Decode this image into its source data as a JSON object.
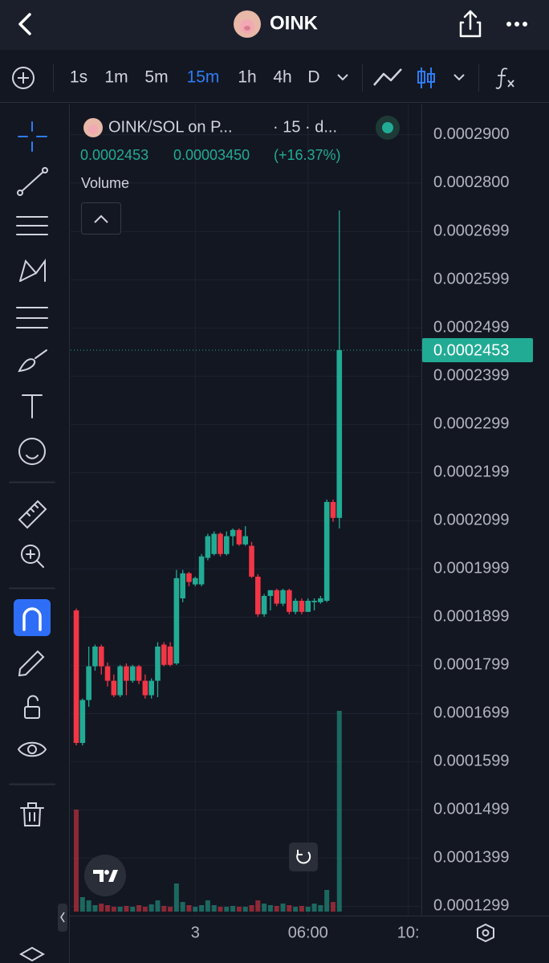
{
  "header": {
    "title": "OINK"
  },
  "toolbar": {
    "intervals": [
      "1s",
      "1m",
      "5m",
      "15m",
      "1h",
      "4h",
      "D"
    ],
    "active": 3
  },
  "chart_data": {
    "type": "candlestick",
    "title": "OINK/SOL on P...",
    "subtitle": "· 15 · d...",
    "last_price": 0.0002453,
    "change": {
      "value": 3.45e-05,
      "label": "0.00003450"
    },
    "change_percent": "(+16.37%)",
    "volume_label": "Volume",
    "up_color": "#22ab94",
    "down_color": "#f23645",
    "grid": true,
    "xlim": [
      -0.9,
      55.1
    ],
    "xticks": [
      {
        "value": 19,
        "label": "3"
      },
      {
        "value": 37,
        "label": "06:00"
      },
      {
        "value": 53,
        "label": "10:"
      }
    ],
    "ylim": [
      0.0001288,
      0.0002963
    ],
    "yticks": [
      {
        "value": 0.00029,
        "label": "0.0002900"
      },
      {
        "value": 0.00028,
        "label": "0.0002800"
      },
      0.0002699,
      0.0002599,
      0.0002499,
      0.0002399,
      0.0002299,
      0.0002199,
      0.0002099,
      0.0001999,
      0.0001899,
      0.0001799,
      0.0001699,
      0.0001599,
      0.0001499,
      0.0001399,
      0.0001299
    ],
    "open": [
      0.0001913,
      0.0001638,
      0.0001727,
      0.0001797,
      0.0001838,
      0.0001797,
      0.0001767,
      0.0001737,
      0.0001797,
      0.0001767,
      0.0001797,
      0.0001767,
      0.0001737,
      0.0001767,
      0.0001842,
      0.0001838,
      0.0001803,
      0.0001938,
      0.000199,
      0.0001967,
      0.0001967,
      0.0002022,
      0.000203,
      0.0002072,
      0.000203,
      0.0002067,
      0.000208,
      0.000205,
      0.0002047,
      0.0001983,
      0.0001905,
      0.0001943,
      0.0001955,
      0.0001927,
      0.0001955,
      0.000191,
      0.0001933,
      0.000191,
      0.000193,
      0.000193,
      0.0001933,
      0.0002138,
      0.0002105
    ],
    "high": [
      0.0001917,
      0.000173,
      0.0001838,
      0.0001842,
      0.0001842,
      0.0001805,
      0.000178,
      0.00018,
      0.0001803,
      0.00018,
      0.00018,
      0.000178,
      0.0001772,
      0.0001847,
      0.0001847,
      0.0001847,
      0.0001997,
      0.0001997,
      0.0001993,
      0.0001983,
      0.000203,
      0.0002072,
      0.0002077,
      0.0002075,
      0.0002077,
      0.0002083,
      0.0002083,
      0.0002088,
      0.0002055,
      0.0001988,
      0.0001947,
      0.0001947,
      0.0001958,
      0.0001958,
      0.0001958,
      0.0001938,
      0.0001938,
      0.0001938,
      0.0001938,
      0.0001943,
      0.0002143,
      0.0002143,
      0.0002743
    ],
    "low": [
      0.0001633,
      0.0001633,
      0.0001713,
      0.0001788,
      0.000178,
      0.0001755,
      0.0001733,
      0.0001733,
      0.0001737,
      0.0001763,
      0.000176,
      0.000173,
      0.000173,
      0.0001733,
      0.0001797,
      0.0001797,
      0.00018,
      0.000193,
      0.0001963,
      0.0001963,
      0.0001963,
      0.0002017,
      0.0002027,
      0.0002025,
      0.0002027,
      0.0002047,
      0.0002047,
      0.0002047,
      0.000198,
      0.00019,
      0.00019,
      0.0001913,
      0.0001922,
      0.0001922,
      0.0001905,
      0.0001905,
      0.0001905,
      0.000191,
      0.0001913,
      0.0001927,
      0.000193,
      0.0002097,
      0.0002083
    ],
    "close": [
      0.0001638,
      0.0001727,
      0.0001797,
      0.0001838,
      0.0001797,
      0.0001767,
      0.0001737,
      0.0001797,
      0.0001767,
      0.0001797,
      0.0001767,
      0.0001737,
      0.0001767,
      0.0001838,
      0.00018,
      0.00018,
      0.000198,
      0.000199,
      0.0001972,
      0.000198,
      0.0002025,
      0.0002067,
      0.0002072,
      0.000203,
      0.0002067,
      0.000208,
      0.000205,
      0.0002067,
      0.0001983,
      0.0001905,
      0.0001943,
      0.0001955,
      0.0001927,
      0.0001955,
      0.000191,
      0.0001933,
      0.000191,
      0.0001933,
      0.0001933,
      0.0001938,
      0.0002138,
      0.0002105,
      0.0002453
    ],
    "volume": [
      127,
      18,
      14,
      8,
      10,
      8,
      6,
      6,
      7,
      6,
      8,
      6,
      9,
      14,
      7,
      6,
      35,
      12,
      8,
      6,
      8,
      14,
      8,
      6,
      6,
      7,
      6,
      6,
      8,
      14,
      10,
      8,
      7,
      10,
      8,
      6,
      7,
      6,
      10,
      8,
      27,
      12,
      250
    ]
  }
}
